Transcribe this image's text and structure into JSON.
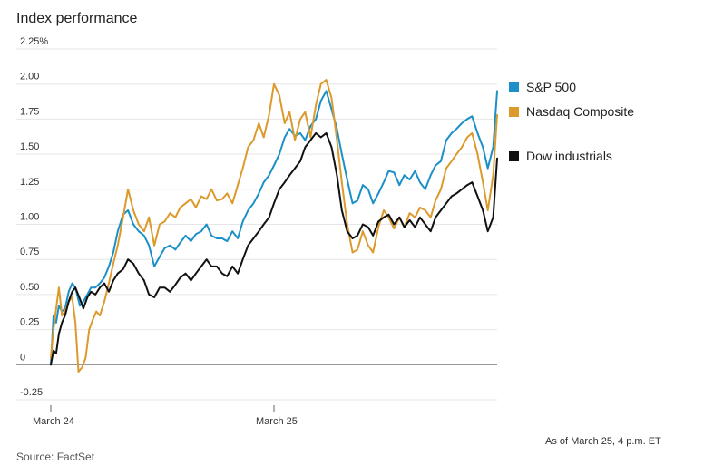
{
  "header": {
    "title": "Index performance"
  },
  "footer": {
    "source": "Source: FactSet",
    "as_of": "As of March 25, 4 p.m. ET"
  },
  "colors": {
    "sp500": "#1b90c8",
    "nasdaq": "#dc9a2c",
    "dow": "#111111",
    "grid": "#e6e6e6",
    "zero": "#888888"
  },
  "chart_data": {
    "type": "line",
    "title": "Index performance",
    "xlabel": "",
    "ylabel": "",
    "ylim": [
      -0.25,
      2.25
    ],
    "xlim": [
      0,
      100
    ],
    "grid": true,
    "legend_position": "right",
    "y_ticks": [
      {
        "value": 2.25,
        "label": "2.25%"
      },
      {
        "value": 2.0,
        "label": "2.00"
      },
      {
        "value": 1.75,
        "label": "1.75"
      },
      {
        "value": 1.5,
        "label": "1.50"
      },
      {
        "value": 1.25,
        "label": "1.25"
      },
      {
        "value": 1.0,
        "label": "1.00"
      },
      {
        "value": 0.75,
        "label": "0.75"
      },
      {
        "value": 0.5,
        "label": "0.50"
      },
      {
        "value": 0.25,
        "label": "0.25"
      },
      {
        "value": 0.0,
        "label": "0"
      },
      {
        "value": -0.25,
        "label": "-0.25"
      }
    ],
    "x_ticks": [
      {
        "value": 0,
        "label": "March 24"
      },
      {
        "value": 50,
        "label": "March 25"
      }
    ],
    "series": [
      {
        "name": "S&P 500",
        "color_key": "sp500",
        "points": [
          [
            0,
            0.0
          ],
          [
            0.6,
            0.35
          ],
          [
            1.2,
            0.3
          ],
          [
            1.8,
            0.42
          ],
          [
            2.5,
            0.38
          ],
          [
            3.2,
            0.4
          ],
          [
            4,
            0.52
          ],
          [
            4.8,
            0.58
          ],
          [
            5.5,
            0.55
          ],
          [
            6.5,
            0.42
          ],
          [
            7.3,
            0.45
          ],
          [
            8.2,
            0.5
          ],
          [
            9,
            0.55
          ],
          [
            10,
            0.55
          ],
          [
            11,
            0.58
          ],
          [
            12,
            0.62
          ],
          [
            13,
            0.7
          ],
          [
            14,
            0.8
          ],
          [
            15,
            0.95
          ],
          [
            16.2,
            1.07
          ],
          [
            17.3,
            1.1
          ],
          [
            18.5,
            1.0
          ],
          [
            19.7,
            0.95
          ],
          [
            20.9,
            0.92
          ],
          [
            22,
            0.85
          ],
          [
            23.2,
            0.7
          ],
          [
            24.4,
            0.77
          ],
          [
            25.5,
            0.83
          ],
          [
            26.7,
            0.85
          ],
          [
            27.9,
            0.82
          ],
          [
            29,
            0.87
          ],
          [
            30.2,
            0.92
          ],
          [
            31.4,
            0.88
          ],
          [
            32.5,
            0.93
          ],
          [
            33.7,
            0.95
          ],
          [
            34.9,
            1.0
          ],
          [
            36,
            0.92
          ],
          [
            37.2,
            0.9
          ],
          [
            38.4,
            0.9
          ],
          [
            39.5,
            0.88
          ],
          [
            40.7,
            0.95
          ],
          [
            41.9,
            0.9
          ],
          [
            43,
            1.02
          ],
          [
            44.2,
            1.1
          ],
          [
            45.4,
            1.15
          ],
          [
            46.6,
            1.22
          ],
          [
            47.7,
            1.3
          ],
          [
            48.9,
            1.35
          ],
          [
            50,
            1.42
          ],
          [
            51.2,
            1.5
          ],
          [
            52.4,
            1.62
          ],
          [
            53.5,
            1.68
          ],
          [
            54.7,
            1.63
          ],
          [
            55.9,
            1.65
          ],
          [
            57,
            1.6
          ],
          [
            58.2,
            1.7
          ],
          [
            59.4,
            1.75
          ],
          [
            60.5,
            1.88
          ],
          [
            61.7,
            1.95
          ],
          [
            62.9,
            1.82
          ],
          [
            64.1,
            1.68
          ],
          [
            65.2,
            1.5
          ],
          [
            66.4,
            1.32
          ],
          [
            67.6,
            1.15
          ],
          [
            68.7,
            1.17
          ],
          [
            69.9,
            1.28
          ],
          [
            71.1,
            1.25
          ],
          [
            72.2,
            1.15
          ],
          [
            73.4,
            1.22
          ],
          [
            74.6,
            1.3
          ],
          [
            75.7,
            1.38
          ],
          [
            76.9,
            1.37
          ],
          [
            78.1,
            1.28
          ],
          [
            79.2,
            1.35
          ],
          [
            80.4,
            1.32
          ],
          [
            81.6,
            1.38
          ],
          [
            82.7,
            1.3
          ],
          [
            83.9,
            1.25
          ],
          [
            85.1,
            1.35
          ],
          [
            86.2,
            1.42
          ],
          [
            87.4,
            1.45
          ],
          [
            88.6,
            1.6
          ],
          [
            89.8,
            1.65
          ],
          [
            90.9,
            1.68
          ],
          [
            92.1,
            1.72
          ],
          [
            93.3,
            1.75
          ],
          [
            94.4,
            1.77
          ],
          [
            95.6,
            1.65
          ],
          [
            96.8,
            1.55
          ],
          [
            97.9,
            1.4
          ],
          [
            99.1,
            1.55
          ],
          [
            100,
            1.95
          ]
        ]
      },
      {
        "name": "Nasdaq Composite",
        "color_key": "nasdaq",
        "points": [
          [
            0,
            0.05
          ],
          [
            0.6,
            0.25
          ],
          [
            1.2,
            0.4
          ],
          [
            1.8,
            0.55
          ],
          [
            2.5,
            0.35
          ],
          [
            3.2,
            0.38
          ],
          [
            4,
            0.45
          ],
          [
            4.8,
            0.48
          ],
          [
            5.5,
            0.3
          ],
          [
            6.2,
            -0.05
          ],
          [
            7,
            -0.02
          ],
          [
            7.8,
            0.05
          ],
          [
            8.6,
            0.25
          ],
          [
            9.4,
            0.32
          ],
          [
            10.2,
            0.38
          ],
          [
            11,
            0.35
          ],
          [
            12,
            0.45
          ],
          [
            13,
            0.58
          ],
          [
            14,
            0.72
          ],
          [
            15,
            0.85
          ],
          [
            16.2,
            1.05
          ],
          [
            17.3,
            1.25
          ],
          [
            18.5,
            1.1
          ],
          [
            19.7,
            1.0
          ],
          [
            20.9,
            0.95
          ],
          [
            22,
            1.05
          ],
          [
            23.2,
            0.85
          ],
          [
            24.4,
            1.0
          ],
          [
            25.5,
            1.02
          ],
          [
            26.7,
            1.08
          ],
          [
            27.9,
            1.05
          ],
          [
            29,
            1.12
          ],
          [
            30.2,
            1.15
          ],
          [
            31.4,
            1.18
          ],
          [
            32.5,
            1.12
          ],
          [
            33.7,
            1.2
          ],
          [
            34.9,
            1.18
          ],
          [
            36,
            1.25
          ],
          [
            37.2,
            1.17
          ],
          [
            38.4,
            1.18
          ],
          [
            39.5,
            1.22
          ],
          [
            40.7,
            1.15
          ],
          [
            41.9,
            1.28
          ],
          [
            43,
            1.4
          ],
          [
            44.2,
            1.55
          ],
          [
            45.4,
            1.6
          ],
          [
            46.6,
            1.72
          ],
          [
            47.7,
            1.62
          ],
          [
            48.9,
            1.78
          ],
          [
            50,
            2.0
          ],
          [
            51.2,
            1.92
          ],
          [
            52.4,
            1.72
          ],
          [
            53.5,
            1.8
          ],
          [
            54.7,
            1.6
          ],
          [
            55.9,
            1.75
          ],
          [
            57,
            1.8
          ],
          [
            58.2,
            1.62
          ],
          [
            59.4,
            1.85
          ],
          [
            60.5,
            2.0
          ],
          [
            61.7,
            2.03
          ],
          [
            62.9,
            1.9
          ],
          [
            64.1,
            1.6
          ],
          [
            65.2,
            1.3
          ],
          [
            66.4,
            1.0
          ],
          [
            67.6,
            0.8
          ],
          [
            68.7,
            0.82
          ],
          [
            69.9,
            0.95
          ],
          [
            71.1,
            0.85
          ],
          [
            72.2,
            0.8
          ],
          [
            73.4,
            0.98
          ],
          [
            74.6,
            1.1
          ],
          [
            75.7,
            1.05
          ],
          [
            76.9,
            0.97
          ],
          [
            78.1,
            1.05
          ],
          [
            79.2,
            0.98
          ],
          [
            80.4,
            1.08
          ],
          [
            81.6,
            1.05
          ],
          [
            82.7,
            1.12
          ],
          [
            83.9,
            1.1
          ],
          [
            85.1,
            1.05
          ],
          [
            86.2,
            1.17
          ],
          [
            87.4,
            1.25
          ],
          [
            88.6,
            1.4
          ],
          [
            89.8,
            1.45
          ],
          [
            90.9,
            1.5
          ],
          [
            92.1,
            1.55
          ],
          [
            93.3,
            1.62
          ],
          [
            94.4,
            1.65
          ],
          [
            95.6,
            1.5
          ],
          [
            96.8,
            1.3
          ],
          [
            97.9,
            1.1
          ],
          [
            99.1,
            1.35
          ],
          [
            100,
            1.78
          ]
        ]
      },
      {
        "name": "Dow industrials",
        "color_key": "dow",
        "points": [
          [
            0,
            0.0
          ],
          [
            0.6,
            0.1
          ],
          [
            1.2,
            0.08
          ],
          [
            1.8,
            0.22
          ],
          [
            2.5,
            0.3
          ],
          [
            3.2,
            0.35
          ],
          [
            4,
            0.45
          ],
          [
            4.8,
            0.52
          ],
          [
            5.5,
            0.55
          ],
          [
            6.5,
            0.47
          ],
          [
            7.3,
            0.4
          ],
          [
            8.2,
            0.48
          ],
          [
            9,
            0.52
          ],
          [
            10,
            0.5
          ],
          [
            11,
            0.55
          ],
          [
            12,
            0.58
          ],
          [
            13,
            0.52
          ],
          [
            14,
            0.6
          ],
          [
            15,
            0.65
          ],
          [
            16.2,
            0.68
          ],
          [
            17.3,
            0.75
          ],
          [
            18.5,
            0.72
          ],
          [
            19.7,
            0.65
          ],
          [
            20.9,
            0.6
          ],
          [
            22,
            0.5
          ],
          [
            23.2,
            0.48
          ],
          [
            24.4,
            0.55
          ],
          [
            25.5,
            0.55
          ],
          [
            26.7,
            0.52
          ],
          [
            27.9,
            0.57
          ],
          [
            29,
            0.62
          ],
          [
            30.2,
            0.65
          ],
          [
            31.4,
            0.6
          ],
          [
            32.5,
            0.65
          ],
          [
            33.7,
            0.7
          ],
          [
            34.9,
            0.75
          ],
          [
            36,
            0.7
          ],
          [
            37.2,
            0.7
          ],
          [
            38.4,
            0.65
          ],
          [
            39.5,
            0.63
          ],
          [
            40.7,
            0.7
          ],
          [
            41.9,
            0.65
          ],
          [
            43,
            0.75
          ],
          [
            44.2,
            0.85
          ],
          [
            45.4,
            0.9
          ],
          [
            46.6,
            0.95
          ],
          [
            47.7,
            1.0
          ],
          [
            48.9,
            1.05
          ],
          [
            50,
            1.15
          ],
          [
            51.2,
            1.25
          ],
          [
            52.4,
            1.3
          ],
          [
            53.5,
            1.35
          ],
          [
            54.7,
            1.4
          ],
          [
            55.9,
            1.45
          ],
          [
            57,
            1.55
          ],
          [
            58.2,
            1.6
          ],
          [
            59.4,
            1.65
          ],
          [
            60.5,
            1.62
          ],
          [
            61.7,
            1.65
          ],
          [
            62.9,
            1.55
          ],
          [
            64.1,
            1.35
          ],
          [
            65.2,
            1.1
          ],
          [
            66.4,
            0.95
          ],
          [
            67.6,
            0.9
          ],
          [
            68.7,
            0.92
          ],
          [
            69.9,
            1.0
          ],
          [
            71.1,
            0.98
          ],
          [
            72.2,
            0.92
          ],
          [
            73.4,
            1.02
          ],
          [
            74.6,
            1.05
          ],
          [
            75.7,
            1.07
          ],
          [
            76.9,
            1.0
          ],
          [
            78.1,
            1.05
          ],
          [
            79.2,
            0.98
          ],
          [
            80.4,
            1.03
          ],
          [
            81.6,
            0.98
          ],
          [
            82.7,
            1.05
          ],
          [
            83.9,
            1.0
          ],
          [
            85.1,
            0.95
          ],
          [
            86.2,
            1.05
          ],
          [
            87.4,
            1.1
          ],
          [
            88.6,
            1.15
          ],
          [
            89.8,
            1.2
          ],
          [
            90.9,
            1.22
          ],
          [
            92.1,
            1.25
          ],
          [
            93.3,
            1.28
          ],
          [
            94.4,
            1.3
          ],
          [
            95.6,
            1.2
          ],
          [
            96.8,
            1.1
          ],
          [
            97.9,
            0.95
          ],
          [
            99.1,
            1.05
          ],
          [
            100,
            1.47
          ]
        ]
      }
    ]
  }
}
